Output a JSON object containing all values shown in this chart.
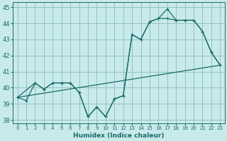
{
  "xlabel": "Humidex (Indice chaleur)",
  "bg_color": "#c8eaea",
  "grid_color": "#8cbcbc",
  "line_color": "#1a6b6b",
  "xlim": [
    -0.5,
    23.5
  ],
  "ylim": [
    37.8,
    45.3
  ],
  "xticks": [
    0,
    1,
    2,
    3,
    4,
    5,
    6,
    7,
    8,
    9,
    10,
    11,
    12,
    13,
    14,
    15,
    16,
    17,
    18,
    19,
    20,
    21,
    22,
    23
  ],
  "yticks": [
    38,
    39,
    40,
    41,
    42,
    43,
    44,
    45
  ],
  "line1_x": [
    0,
    1,
    2,
    3,
    4,
    5,
    6,
    7,
    8,
    9,
    10,
    11,
    12,
    13,
    14,
    15,
    16,
    17,
    18,
    19,
    20,
    21,
    22,
    23
  ],
  "line1_y": [
    39.4,
    39.2,
    40.3,
    39.9,
    40.3,
    40.3,
    40.3,
    39.7,
    38.2,
    38.8,
    38.2,
    39.3,
    39.5,
    43.3,
    43.0,
    44.1,
    44.3,
    44.9,
    44.2,
    44.2,
    44.2,
    43.5,
    42.2,
    41.4
  ],
  "line2_x": [
    0,
    2,
    3,
    4,
    5,
    6,
    7,
    8,
    9,
    10,
    11,
    12,
    13,
    14,
    15,
    16,
    17,
    18,
    19,
    20,
    21,
    22,
    23
  ],
  "line2_y": [
    39.4,
    40.3,
    39.9,
    40.3,
    40.3,
    40.3,
    39.7,
    38.2,
    38.8,
    38.2,
    39.3,
    39.5,
    43.3,
    43.0,
    44.1,
    44.3,
    44.3,
    44.2,
    44.2,
    44.2,
    43.5,
    42.2,
    41.4
  ],
  "line3_x": [
    0,
    23
  ],
  "line3_y": [
    39.4,
    41.4
  ]
}
